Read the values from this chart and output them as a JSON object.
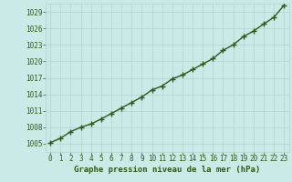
{
  "x": [
    0,
    1,
    2,
    3,
    4,
    5,
    6,
    7,
    8,
    9,
    10,
    11,
    12,
    13,
    14,
    15,
    16,
    17,
    18,
    19,
    20,
    21,
    22,
    23
  ],
  "y": [
    1005.2,
    1006.0,
    1007.2,
    1008.0,
    1008.6,
    1009.5,
    1010.5,
    1011.5,
    1012.5,
    1013.5,
    1014.8,
    1015.5,
    1016.8,
    1017.5,
    1018.5,
    1019.5,
    1020.5,
    1022.0,
    1023.0,
    1024.5,
    1025.5,
    1026.8,
    1028.0,
    1030.2
  ],
  "line_color": "#2d5a1b",
  "marker_color": "#2d5a1b",
  "bg_color": "#c8ebe8",
  "grid_color": "#b0d4d0",
  "xlabel": "Graphe pression niveau de la mer (hPa)",
  "ylim": [
    1003.5,
    1030.5
  ],
  "xlim": [
    -0.5,
    23.5
  ],
  "yticks": [
    1005,
    1008,
    1011,
    1014,
    1017,
    1020,
    1023,
    1026,
    1029
  ],
  "xticks": [
    0,
    1,
    2,
    3,
    4,
    5,
    6,
    7,
    8,
    9,
    10,
    11,
    12,
    13,
    14,
    15,
    16,
    17,
    18,
    19,
    20,
    21,
    22,
    23
  ],
  "tick_color": "#2d5a1b",
  "xlabel_color": "#2d5a1b",
  "xlabel_fontsize": 6.5,
  "tick_fontsize": 5.5,
  "line_width": 1.0,
  "marker_size": 2.5
}
